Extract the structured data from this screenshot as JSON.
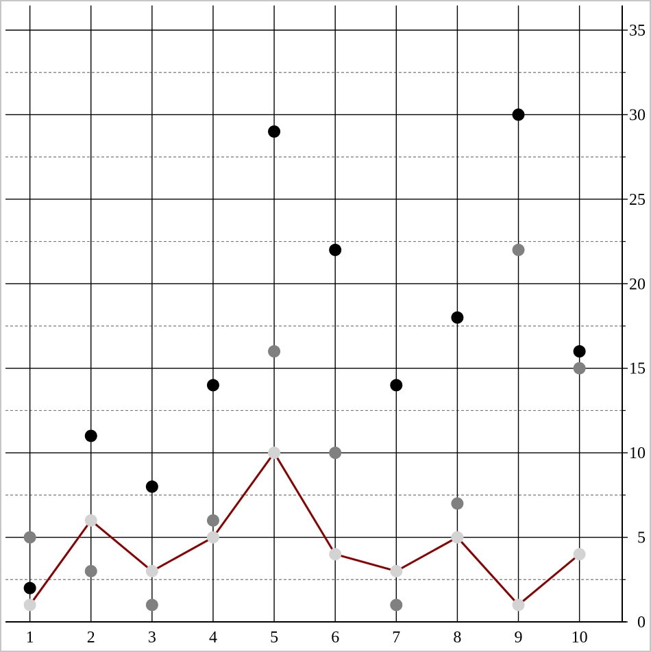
{
  "chart_data": {
    "type": "scatter",
    "x": [
      1,
      2,
      3,
      4,
      5,
      6,
      7,
      8,
      9,
      10
    ],
    "x_tick_labels": [
      "1",
      "2",
      "3",
      "4",
      "5",
      "6",
      "7",
      "8",
      "9",
      "10"
    ],
    "y_tick_labels": [
      "0",
      "5",
      "10",
      "15",
      "20",
      "25",
      "30",
      "35"
    ],
    "y_ticks": [
      0,
      5,
      10,
      15,
      20,
      25,
      30,
      35
    ],
    "xlim": [
      0.6,
      10.7
    ],
    "ylim": [
      0,
      35
    ],
    "y_axis_side": "right",
    "grid": {
      "major": true,
      "minor_dashed": true,
      "minor_y_ticks": [
        2.5,
        7.5,
        12.5,
        17.5,
        22.5,
        27.5,
        32.5
      ]
    },
    "series": [
      {
        "marker": "dot",
        "color": "#000000",
        "values": [
          2,
          11,
          8,
          14,
          29,
          22,
          14,
          18,
          30,
          16
        ]
      },
      {
        "marker": "dot",
        "color": "#808080",
        "values": [
          5,
          3,
          1,
          6,
          16,
          10,
          1,
          7,
          22,
          15
        ]
      },
      {
        "marker": "dot+line",
        "color": "#d3d3d3",
        "line_color": "#8b0000",
        "values": [
          1,
          6,
          3,
          5,
          10,
          4,
          3,
          5,
          1,
          4
        ]
      }
    ],
    "title": "",
    "xlabel": "",
    "ylabel": ""
  }
}
